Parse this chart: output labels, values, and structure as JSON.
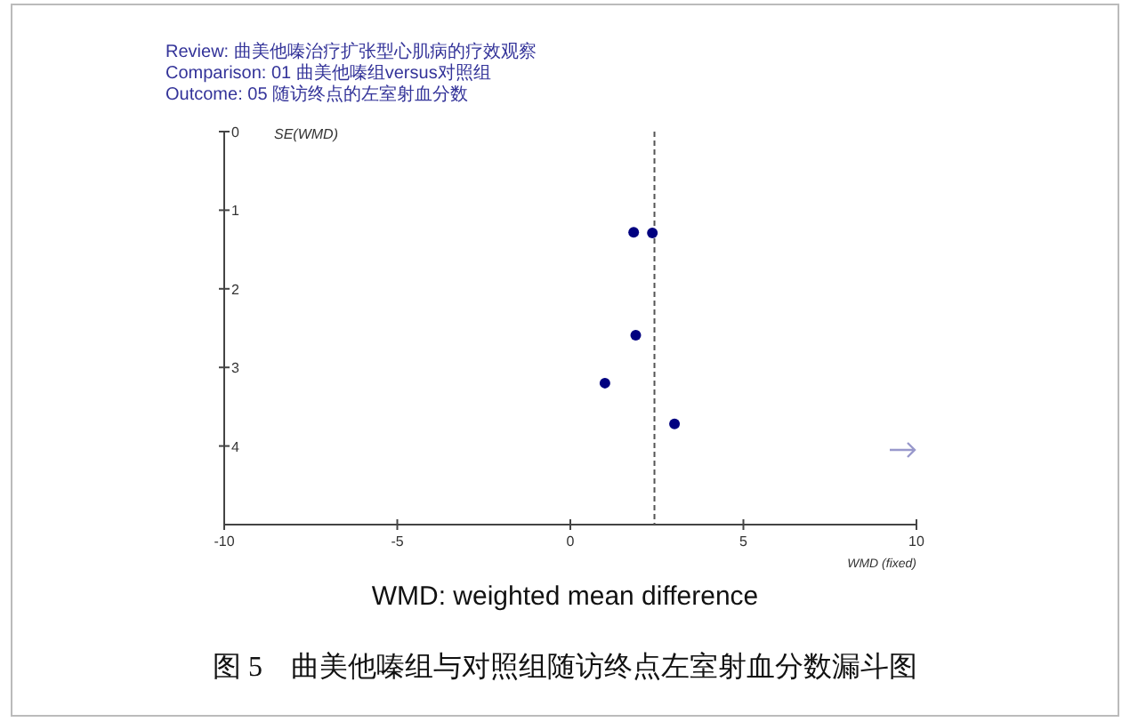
{
  "chart_data": {
    "type": "scatter",
    "annotations": [
      "Review: 曲美他嗪治疗扩张型心肌病的疗效观察",
      "Comparison: 01 曲美他嗪组versus对照组",
      "Outcome: 05 随访终点的左室射血分数",
      "WMD: weighted mean difference",
      "图 5　曲美他嗪组与对照组随访终点左室射血分数漏斗图"
    ],
    "xlabel": "WMD (fixed)",
    "ylabel": "SE(WMD)",
    "xlim": [
      -10,
      10
    ],
    "ylim": [
      5,
      0
    ],
    "xticks": [
      -10,
      -5,
      0,
      5,
      10
    ],
    "yticks": [
      0,
      1,
      2,
      3,
      4
    ],
    "grid": false,
    "marker": "circle",
    "series": [
      {
        "color": "#000080",
        "x": [
          1.83,
          2.37,
          1.89,
          1.0,
          3.01
        ],
        "values": [
          1.28,
          1.29,
          2.59,
          3.2,
          3.72
        ]
      }
    ],
    "ref_lines": [
      {
        "axis": "x",
        "value": 2.43,
        "line_style": "dashed",
        "color": "#555555"
      }
    ]
  }
}
